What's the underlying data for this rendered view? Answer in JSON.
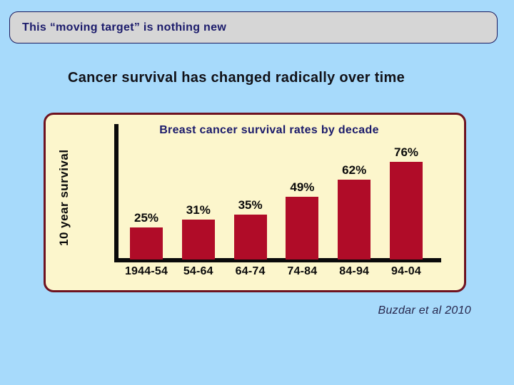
{
  "slide": {
    "title": "This “moving target” is nothing new",
    "subtitle": "Cancer survival has changed radically over time",
    "citation": "Buzdar et al 2010"
  },
  "chart_data": {
    "type": "bar",
    "title": "Breast cancer survival rates by decade",
    "xlabel": "",
    "ylabel": "10 year survival",
    "categories": [
      "1944-54",
      "54-64",
      "64-74",
      "74-84",
      "84-94",
      "94-04"
    ],
    "values": [
      25,
      31,
      35,
      49,
      62,
      76
    ],
    "value_labels": [
      "25%",
      "31%",
      "35%",
      "49%",
      "62%",
      "76%"
    ],
    "ylim": [
      0,
      100
    ],
    "grid": false,
    "legend": false
  },
  "colors": {
    "slide_bg": "#a7dafb",
    "title_box_bg": "#d6d6d6",
    "title_box_border": "#1b1b5e",
    "navy_text": "#1b1b6b",
    "dark_text": "#121218",
    "panel_bg": "#fcf6cc",
    "panel_border": "#6e1220",
    "bar": "#b00c28",
    "axis": "#0a0a0a",
    "citation_text": "#26264c"
  }
}
